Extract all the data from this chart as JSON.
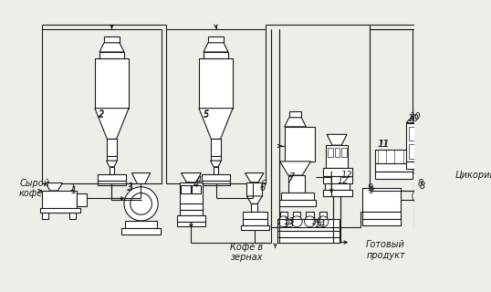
{
  "bg_color": "#eeede8",
  "line_color": "#1a1a1a",
  "lw": 0.8,
  "labels": {
    "syroy_kofe": "Сырой\nкофе",
    "kofe_v_zernah": "Кофе в\nзернах",
    "gotoviy_produkt": "Готовый\nпродукт",
    "tsikoriy": "Цикорий"
  }
}
